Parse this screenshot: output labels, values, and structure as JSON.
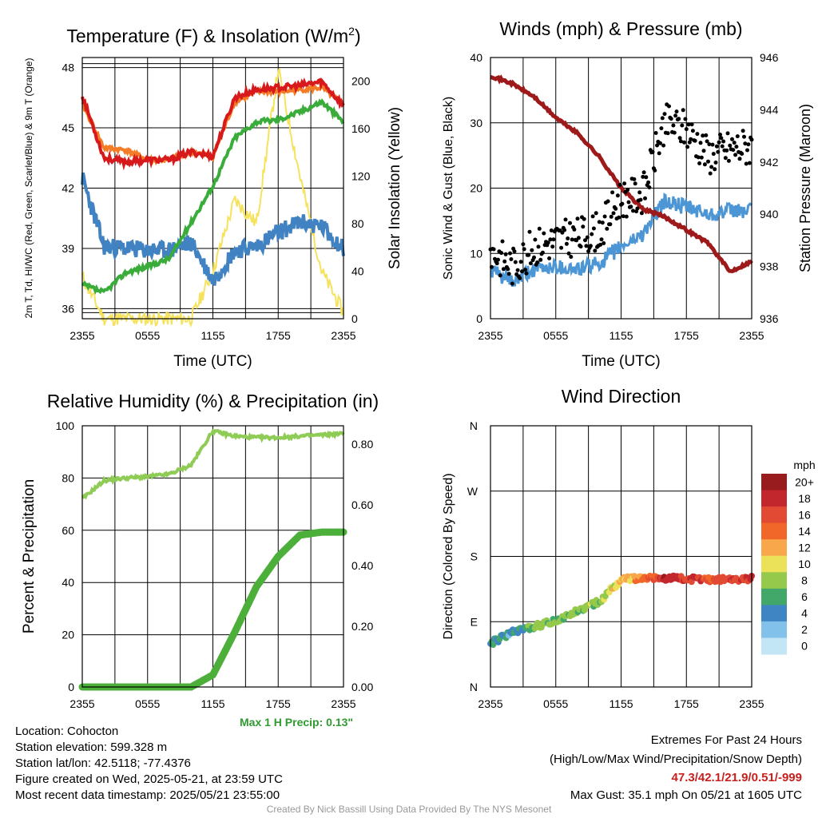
{
  "chart_data": [
    {
      "type": "line",
      "title": "Temperature (F) & Insolation (W/m²)",
      "xlabel": "Time (UTC)",
      "ylabel": "2m T, Td, HI/WC (Red, Green, Scarlet/Blue) & 9m T (Orange)",
      "y2label": "Solar Insolation (Yellow)",
      "x_ticks": [
        "2355",
        "0555",
        "1155",
        "1755",
        "2355"
      ],
      "ylim": [
        35.5,
        48.5
      ],
      "y_ticks": [
        36,
        39,
        42,
        45,
        48
      ],
      "y2lim": [
        0,
        220
      ],
      "y2_ticks": [
        0,
        40,
        80,
        120,
        160,
        200
      ],
      "x": [
        "2355",
        "0155",
        "0355",
        "0555",
        "0755",
        "0955",
        "1155",
        "1355",
        "1555",
        "1755",
        "1955",
        "2155",
        "2355"
      ],
      "series": [
        {
          "name": "2m T",
          "color": "#d7191c",
          "axis": "y",
          "values": [
            46.6,
            43.5,
            43.3,
            43.4,
            43.4,
            43.8,
            43.6,
            46.5,
            46.9,
            47.0,
            47.1,
            47.3,
            46.1
          ]
        },
        {
          "name": "9m T",
          "color": "#f57c26",
          "axis": "y",
          "values": [
            46.2,
            44.0,
            43.9,
            43.4,
            43.4,
            43.8,
            43.6,
            46.3,
            46.8,
            46.8,
            46.9,
            47.0,
            46.2
          ]
        },
        {
          "name": "Td",
          "color": "#39ac39",
          "axis": "y",
          "values": [
            37.2,
            36.8,
            37.8,
            38.1,
            38.5,
            40.3,
            42.1,
            44.5,
            45.3,
            45.4,
            45.8,
            46.3,
            45.3
          ]
        },
        {
          "name": "HI/WC",
          "color": "#4182c2",
          "axis": "y",
          "values": [
            42.5,
            39.1,
            39.0,
            38.9,
            38.9,
            39.3,
            37.4,
            38.9,
            39.1,
            39.8,
            40.3,
            40.1,
            39.0
          ]
        },
        {
          "name": "Solar Insolation",
          "color": "#f6e25c",
          "axis": "y2",
          "values": [
            35,
            0,
            0,
            0,
            0,
            0,
            40,
            100,
            80,
            210,
            120,
            40,
            5
          ]
        }
      ]
    },
    {
      "type": "line",
      "title": "Winds (mph) & Pressure (mb)",
      "xlabel": "Time (UTC)",
      "ylabel": "Sonic Wind & Gust (Blue, Black)",
      "y2label": "Station Pressure (Maroon)",
      "x_ticks": [
        "2355",
        "0555",
        "1155",
        "1755",
        "2355"
      ],
      "ylim": [
        0,
        40
      ],
      "y_ticks": [
        0,
        10,
        20,
        30,
        40
      ],
      "y2lim": [
        936,
        946
      ],
      "y2_ticks": [
        936,
        938,
        940,
        942,
        944,
        946
      ],
      "x": [
        "2355",
        "0155",
        "0355",
        "0555",
        "0755",
        "0955",
        "1155",
        "1355",
        "1555",
        "1755",
        "1955",
        "2155",
        "2355"
      ],
      "series": [
        {
          "name": "Sonic Wind",
          "color": "#4d96d6",
          "axis": "y",
          "values": [
            7.5,
            5.5,
            7.5,
            8.0,
            7.5,
            8.5,
            11.0,
            13.0,
            18.0,
            17.0,
            16.0,
            16.5,
            16.5
          ]
        },
        {
          "name": "Gust",
          "color": "#000000",
          "axis": "y",
          "values": [
            10.5,
            8.0,
            11.0,
            12.0,
            12.5,
            13.5,
            18.5,
            19.0,
            30.0,
            29.0,
            25.0,
            26.0,
            26.5
          ]
        },
        {
          "name": "Station Pressure",
          "color": "#9e1a1a",
          "axis": "y2",
          "values": [
            945.3,
            945.0,
            944.5,
            943.7,
            943.1,
            942.2,
            941.0,
            940.2,
            939.9,
            939.4,
            938.9,
            937.8,
            938.2
          ]
        }
      ]
    },
    {
      "type": "line",
      "title": "Relative Humidity (%) & Precipitation (in)",
      "ylabel": "Percent & Precipitation",
      "x_ticks": [
        "2355",
        "0555",
        "1155",
        "1755",
        "2355"
      ],
      "ylim": [
        0,
        100
      ],
      "y_ticks": [
        0,
        20,
        40,
        60,
        80,
        100
      ],
      "y2lim": [
        0,
        0.86
      ],
      "y2_ticks": [
        "0.00",
        "0.20",
        "0.40",
        "0.60",
        "0.80"
      ],
      "x": [
        "2355",
        "0155",
        "0355",
        "0555",
        "0755",
        "0955",
        "1155",
        "1355",
        "1555",
        "1755",
        "1955",
        "2155",
        "2355"
      ],
      "series": [
        {
          "name": "Relative Humidity",
          "color": "#8fcc55",
          "axis": "y",
          "values": [
            72,
            79,
            80,
            80.5,
            81.5,
            85,
            98,
            96,
            95.5,
            95.5,
            96,
            96.5,
            97
          ]
        },
        {
          "name": "Precipitation",
          "color": "#4caf3a",
          "axis": "y2",
          "values": [
            0,
            0,
            0,
            0,
            0,
            0,
            0.04,
            0.18,
            0.33,
            0.43,
            0.5,
            0.51,
            0.51
          ]
        }
      ]
    },
    {
      "type": "scatter",
      "title": "Wind Direction",
      "ylabel": "Direction (Colored By Speed)",
      "x_ticks": [
        "2355",
        "0555",
        "1155",
        "1755",
        "2355"
      ],
      "y_ticks": [
        "N",
        "E",
        "S",
        "W",
        "N"
      ],
      "ylim": [
        0,
        360
      ],
      "colorbar": {
        "title": "mph",
        "labels": [
          "20+",
          "18",
          "16",
          "14",
          "12",
          "10",
          "8",
          "6",
          "4",
          "2",
          "0"
        ],
        "colors": [
          "#981b1e",
          "#c2272d",
          "#e34a33",
          "#f16729",
          "#f8a74b",
          "#ebe25a",
          "#95c94b",
          "#41a86a",
          "#3f85c4",
          "#82c1ea",
          "#c3e6f7"
        ]
      },
      "x": [
        "2355",
        "0155",
        "0355",
        "0555",
        "0755",
        "0955",
        "1155",
        "1355",
        "1555",
        "1755",
        "1955",
        "2155",
        "2355"
      ],
      "direction_deg": [
        60,
        75,
        83,
        92,
        105,
        118,
        148,
        150,
        150,
        149,
        147,
        148,
        150
      ],
      "speed_mph": [
        5,
        4,
        7,
        8,
        7,
        8,
        11,
        13,
        18,
        17,
        16,
        16,
        17
      ]
    }
  ],
  "station_info": {
    "location": "Location: Cohocton",
    "elevation": "Station elevation: 599.328 m",
    "latlon": "Station lat/lon: 42.5118; -77.4376",
    "created": "Figure created on Wed, 2025-05-21, at 23:59 UTC",
    "recent": "Most recent data timestamp: 2025/05/21 23:55:00"
  },
  "precip_note": "Max 1 H Precip: 0.13\"",
  "extremes": {
    "title": "Extremes For Past 24 Hours",
    "subtitle": "(High/Low/Max Wind/Precipitation/Snow Depth)",
    "values": "47.3/42.1/21.9/0.51/-999",
    "max_gust": "Max Gust: 35.1 mph On 05/21 at 1605 UTC"
  },
  "credit": "Created By Nick Bassill Using Data Provided By The NYS Mesonet"
}
